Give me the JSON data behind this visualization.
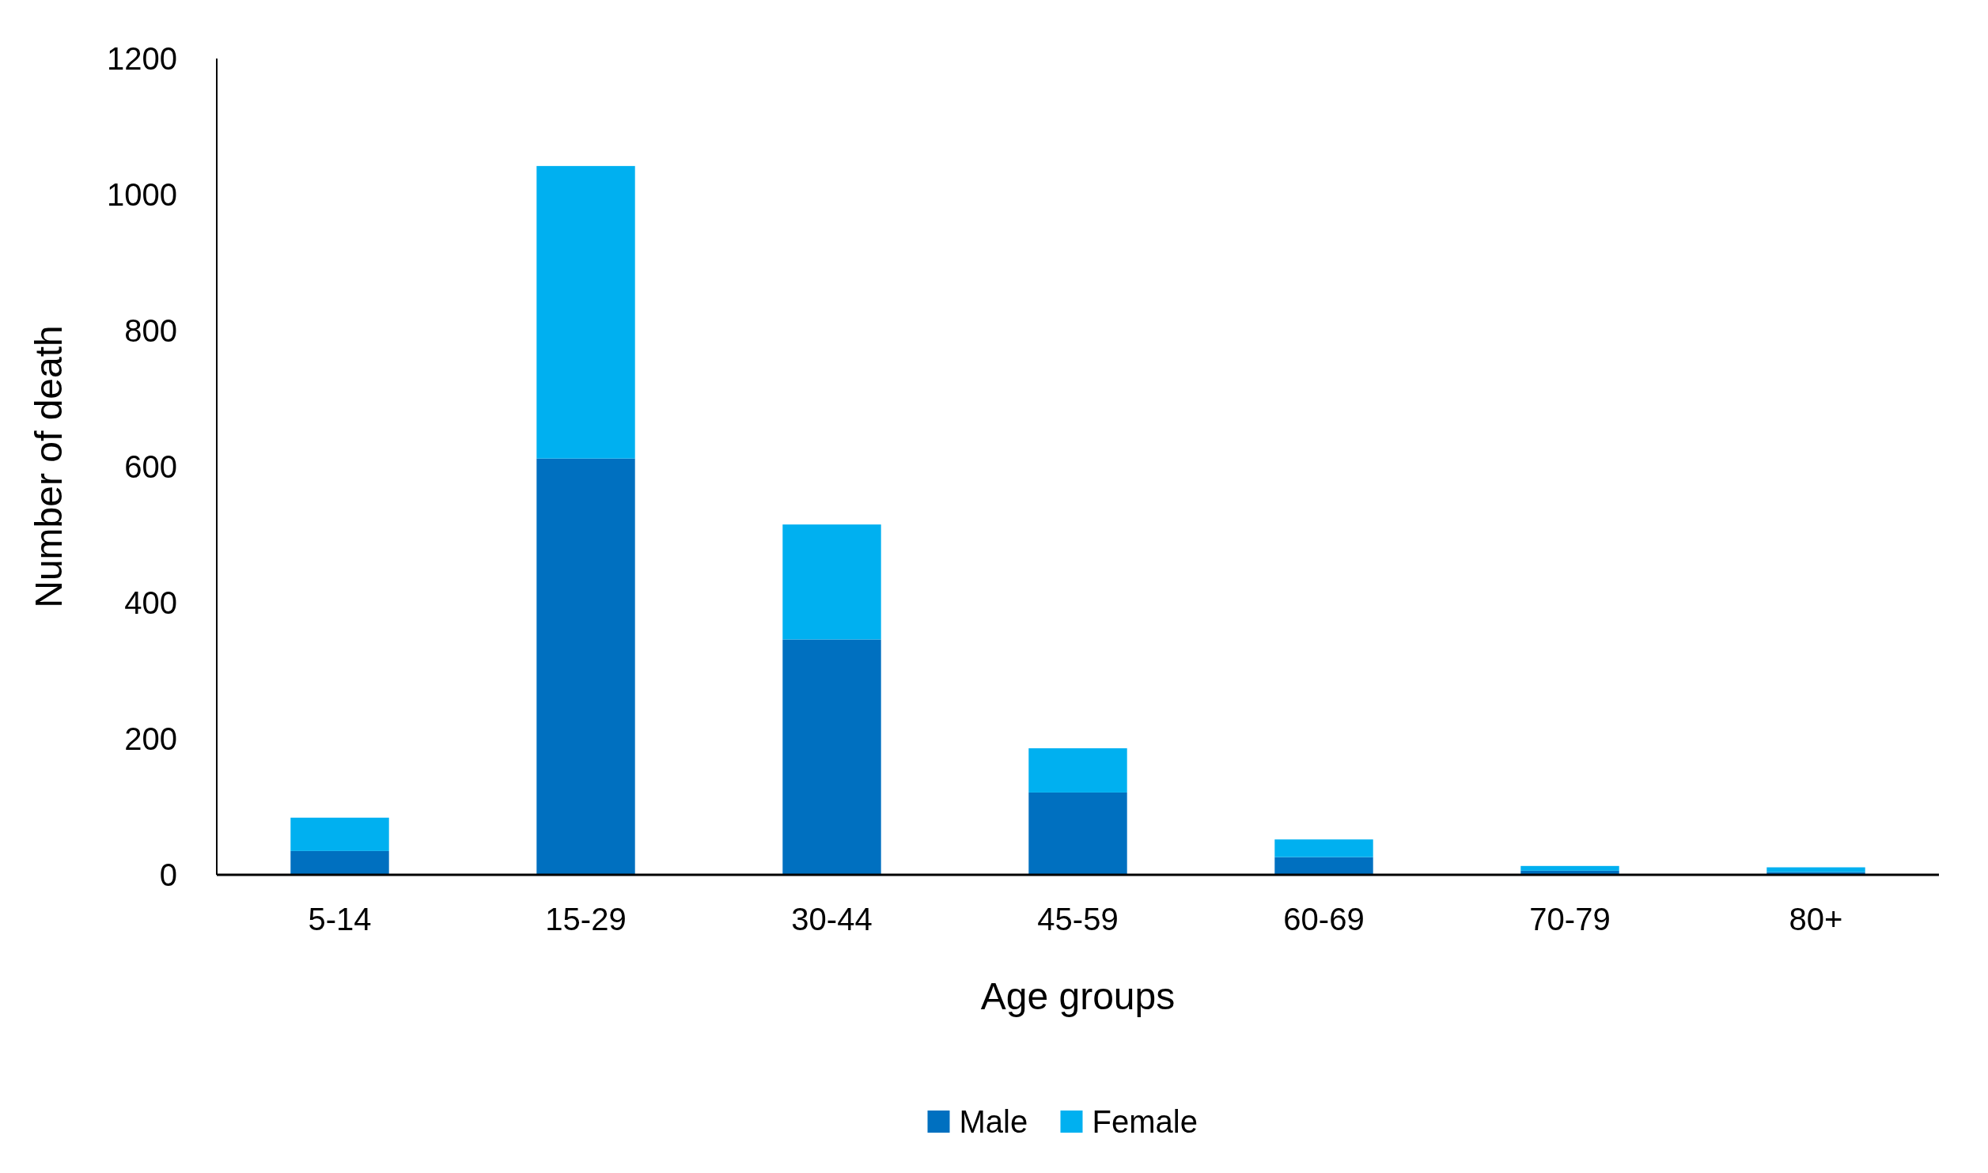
{
  "chart_data": {
    "type": "bar",
    "stacked": true,
    "xlabel": "Age groups",
    "ylabel": "Number of death",
    "categories": [
      "5-14",
      "15-29",
      "30-44",
      "45-59",
      "60-69",
      "70-79",
      "80+"
    ],
    "series": [
      {
        "name": "Male",
        "color": "#0070c0",
        "values": [
          35,
          612,
          346,
          121,
          26,
          6,
          4
        ]
      },
      {
        "name": "Female",
        "color": "#00b0f0",
        "values": [
          49,
          430,
          169,
          65,
          26,
          7,
          7
        ]
      }
    ],
    "ylim": [
      0,
      1200
    ],
    "yticks": [
      0,
      200,
      400,
      600,
      800,
      1000,
      1200
    ],
    "grid": false,
    "legend": "bottom"
  }
}
